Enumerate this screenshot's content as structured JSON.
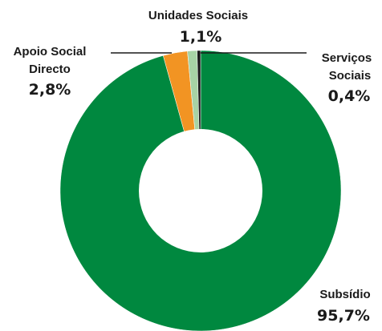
{
  "chart_data": {
    "type": "pie",
    "style": "donut",
    "title": "",
    "slices": [
      {
        "name_lines": [
          "Subsídio"
        ],
        "value": 95.7,
        "value_label": "95,7%",
        "color": "#00883f"
      },
      {
        "name_lines": [
          "Apoio Social",
          "Directo"
        ],
        "value": 2.8,
        "value_label": "2,8%",
        "color": "#f29423"
      },
      {
        "name_lines": [
          "Unidades Sociais"
        ],
        "value": 1.1,
        "value_label": "1,1%",
        "color": "#a7d3a5"
      },
      {
        "name_lines": [
          "Serviços",
          "Sociais"
        ],
        "value": 0.4,
        "value_label": "0,4%",
        "color": "#1a1a1a"
      }
    ]
  }
}
